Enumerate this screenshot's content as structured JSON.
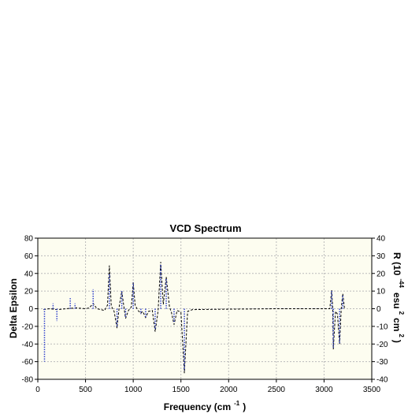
{
  "chart_data": {
    "type": "line",
    "title": "VCD Spectrum",
    "xlabel": [
      "Frequency (cm",
      "-1",
      ")"
    ],
    "ylabel": "Delta Epsilon",
    "y2label": [
      "R (10",
      "-44",
      "esu",
      "2",
      "cm",
      "2",
      ")"
    ],
    "xlim": [
      0,
      3500
    ],
    "xticks": [
      0,
      500,
      1000,
      1500,
      2000,
      2500,
      3000,
      3500
    ],
    "ylim": [
      -80,
      80
    ],
    "yticks": [
      -80,
      -60,
      -40,
      -20,
      0,
      20,
      40,
      60,
      80
    ],
    "y2lim": [
      -40,
      40
    ],
    "y2ticks": [
      -40,
      -30,
      -20,
      -10,
      0,
      10,
      20,
      30,
      40
    ],
    "grid": true,
    "series": [
      {
        "color": "#000000",
        "style": "dashed",
        "x": [
          60,
          120,
          200,
          300,
          400,
          500,
          540,
          580,
          620,
          700,
          730,
          750,
          770,
          800,
          830,
          855,
          880,
          900,
          920,
          950,
          980,
          1000,
          1020,
          1050,
          1080,
          1100,
          1130,
          1160,
          1200,
          1230,
          1260,
          1288,
          1315,
          1346,
          1380,
          1400,
          1428,
          1460,
          1500,
          1536,
          1570,
          1620,
          2000,
          2500,
          3000,
          3060,
          3080,
          3090,
          3097,
          3120,
          3140,
          3163,
          3180,
          3196,
          3215
        ],
        "values": [
          -1,
          0,
          -1,
          0,
          1,
          0,
          1,
          6,
          0,
          -2,
          4,
          49,
          3,
          -3,
          -22,
          4,
          20,
          4,
          -11,
          -2,
          2,
          30,
          4,
          -2,
          -5,
          -3,
          -10,
          -3,
          -2,
          -26,
          -3,
          53,
          5,
          36,
          2,
          -4,
          -18,
          -2,
          -4,
          -73,
          -3,
          -1,
          -0.5,
          0,
          0,
          0,
          21,
          2,
          -46,
          -3,
          -6,
          -40,
          0,
          17,
          0
        ]
      },
      {
        "color": "#3344cc",
        "style": "dotted",
        "axis": "y2",
        "type": "stick",
        "x": [
          70,
          160,
          200,
          340,
          390,
          580,
          750,
          830,
          880,
          920,
          1000,
          1080,
          1130,
          1230,
          1288,
          1346,
          1428,
          1536,
          3080,
          3097,
          3163,
          3196
        ],
        "values": [
          -30,
          3,
          -7,
          6,
          3,
          11,
          20,
          -10,
          10,
          -5,
          15,
          -3,
          -5,
          -12,
          25,
          17,
          -8,
          -35,
          10,
          -22,
          -20,
          8
        ]
      }
    ]
  }
}
